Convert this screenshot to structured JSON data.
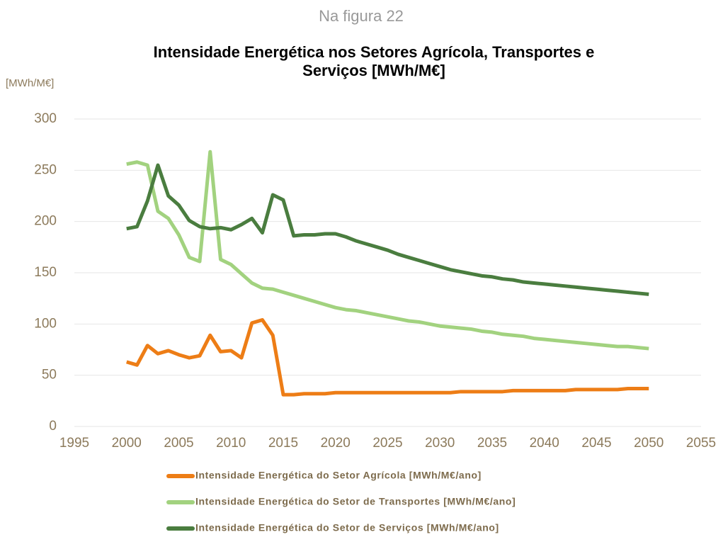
{
  "header": "Na figura 22",
  "chart_data": {
    "type": "line",
    "title": "Intensidade Energética nos Setores Agrícola, Transportes e Serviços [MWh/M€]",
    "y_label": "[MWh/M€]",
    "x": [
      2000,
      2001,
      2002,
      2003,
      2004,
      2005,
      2006,
      2007,
      2008,
      2009,
      2010,
      2011,
      2012,
      2013,
      2014,
      2015,
      2016,
      2017,
      2018,
      2019,
      2020,
      2021,
      2022,
      2023,
      2024,
      2025,
      2026,
      2027,
      2028,
      2029,
      2030,
      2031,
      2032,
      2033,
      2034,
      2035,
      2036,
      2037,
      2038,
      2039,
      2040,
      2041,
      2042,
      2043,
      2044,
      2045,
      2046,
      2047,
      2048,
      2049,
      2050
    ],
    "xlim": [
      1995,
      2055
    ],
    "xticks": [
      1995,
      2000,
      2005,
      2010,
      2015,
      2020,
      2025,
      2030,
      2035,
      2040,
      2045,
      2050,
      2055
    ],
    "ylim": [
      0,
      300
    ],
    "yticks": [
      0,
      50,
      100,
      150,
      200,
      250,
      300
    ],
    "grid": true,
    "legend": "bottom",
    "series": [
      {
        "name": "Intensidade Energética do Setor Agrícola [MWh/M€/ano]",
        "color": "#ed7d16",
        "values": [
          63,
          60,
          79,
          71,
          74,
          70,
          67,
          69,
          89,
          73,
          74,
          67,
          101,
          104,
          89,
          31,
          31,
          32,
          32,
          32,
          33,
          33,
          33,
          33,
          33,
          33,
          33,
          33,
          33,
          33,
          33,
          33,
          34,
          34,
          34,
          34,
          34,
          35,
          35,
          35,
          35,
          35,
          35,
          36,
          36,
          36,
          36,
          36,
          37,
          37,
          37
        ]
      },
      {
        "name": "Intensidade Energética do Setor de Transportes [MWh/M€/ano]",
        "color": "#a2d27f",
        "values": [
          256,
          258,
          255,
          210,
          203,
          187,
          165,
          161,
          268,
          163,
          158,
          149,
          140,
          135,
          134,
          131,
          128,
          125,
          122,
          119,
          116,
          114,
          113,
          111,
          109,
          107,
          105,
          103,
          102,
          100,
          98,
          97,
          96,
          95,
          93,
          92,
          90,
          89,
          88,
          86,
          85,
          84,
          83,
          82,
          81,
          80,
          79,
          78,
          78,
          77,
          76
        ]
      },
      {
        "name": "Intensidade Energética do Setor de Serviços [MWh/M€/ano]",
        "color": "#4a7d3f",
        "values": [
          193,
          195,
          220,
          255,
          225,
          216,
          201,
          195,
          193,
          194,
          192,
          197,
          203,
          189,
          226,
          221,
          186,
          187,
          187,
          188,
          188,
          185,
          181,
          178,
          175,
          172,
          168,
          165,
          162,
          159,
          156,
          153,
          151,
          149,
          147,
          146,
          144,
          143,
          141,
          140,
          139,
          138,
          137,
          136,
          135,
          134,
          133,
          132,
          131,
          130,
          129
        ]
      }
    ]
  }
}
